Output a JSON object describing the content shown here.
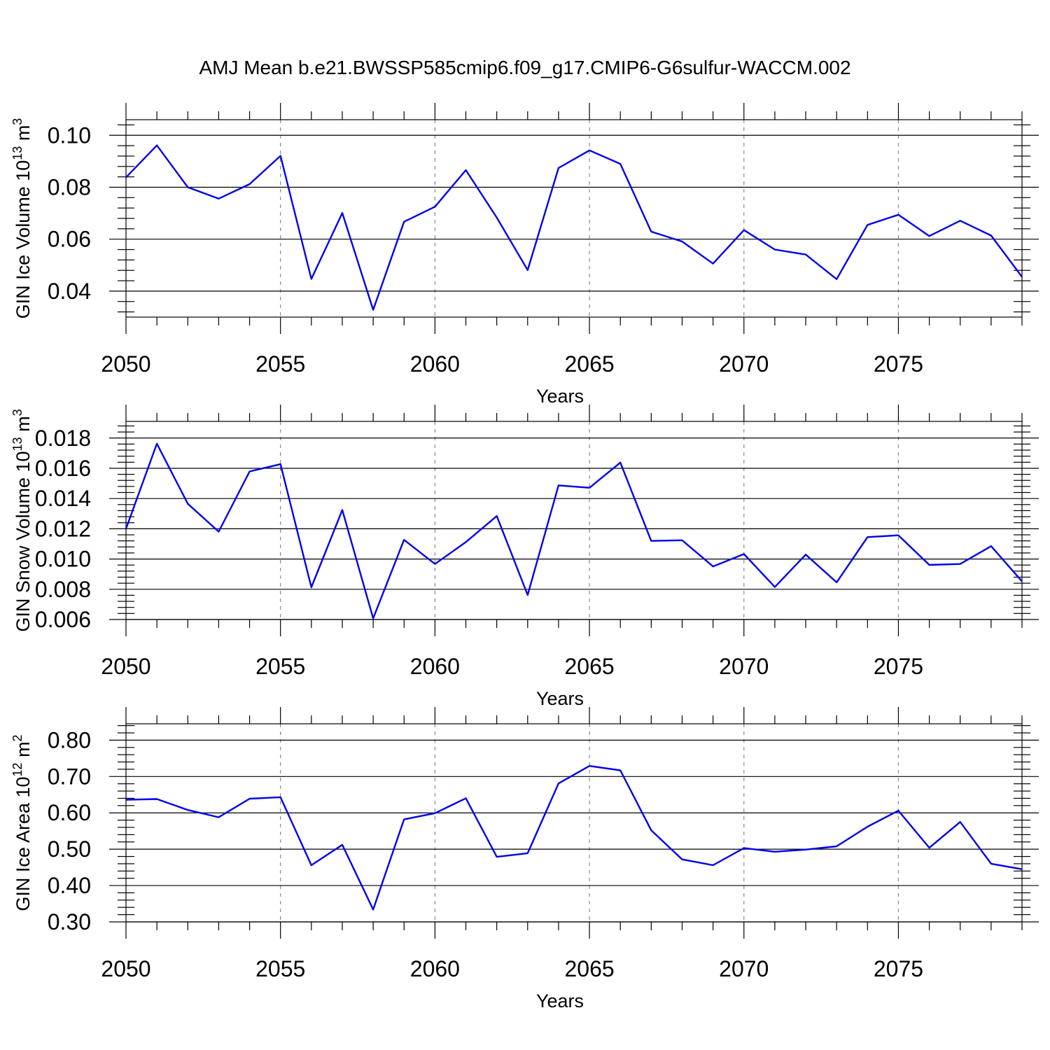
{
  "colors": {
    "series": "#0000ee",
    "grid": "#888888",
    "axis": "#000000"
  },
  "chart_data": {
    "title": "AMJ Mean b.e21.BWSSP585cmip6.f09_g17.CMIP6-G6sulfur-WACCM.002",
    "panels": [
      {
        "type": "line",
        "name": "ice-volume",
        "ylabel": {
          "text": "GIN Ice Volume 10",
          "exp": "13",
          "unit": " m",
          "unit_exp": "3"
        },
        "xlabel": "Years",
        "xlim": [
          2050,
          2079
        ],
        "ylim": [
          0.03,
          0.106
        ],
        "xticks": [
          2050,
          2055,
          2060,
          2065,
          2070,
          2075
        ],
        "xtick_labels": [
          "2050",
          "2055",
          "2060",
          "2065",
          "2070",
          "2075"
        ],
        "yticks": [
          0.04,
          0.06,
          0.08,
          0.1
        ],
        "ytick_labels": [
          "0.04",
          "0.06",
          "0.08",
          "0.10"
        ],
        "yminor_step": 0.004,
        "x": [
          2050,
          2051,
          2052,
          2053,
          2054,
          2055,
          2056,
          2057,
          2058,
          2059,
          2060,
          2061,
          2062,
          2063,
          2064,
          2065,
          2066,
          2067,
          2068,
          2069,
          2070,
          2071,
          2072,
          2073,
          2074,
          2075,
          2076,
          2077,
          2078,
          2079
        ],
        "values": [
          0.0838,
          0.0961,
          0.08,
          0.0756,
          0.0812,
          0.0921,
          0.0447,
          0.0701,
          0.0328,
          0.0667,
          0.0725,
          0.0866,
          0.0683,
          0.0481,
          0.0874,
          0.0942,
          0.089,
          0.0629,
          0.0591,
          0.0506,
          0.0635,
          0.056,
          0.0541,
          0.0446,
          0.0655,
          0.0694,
          0.0612,
          0.0671,
          0.0614,
          0.0455
        ]
      },
      {
        "type": "line",
        "name": "snow-volume",
        "ylabel": {
          "text": "GIN Snow Volume 10",
          "exp": "13",
          "unit": " m",
          "unit_exp": "3"
        },
        "xlabel": "Years",
        "xlim": [
          2050,
          2079
        ],
        "ylim": [
          0.006,
          0.0191
        ],
        "xticks": [
          2050,
          2055,
          2060,
          2065,
          2070,
          2075
        ],
        "xtick_labels": [
          "2050",
          "2055",
          "2060",
          "2065",
          "2070",
          "2075"
        ],
        "yticks": [
          0.006,
          0.008,
          0.01,
          0.012,
          0.014,
          0.016,
          0.018
        ],
        "ytick_labels": [
          "0.006",
          "0.008",
          "0.010",
          "0.012",
          "0.014",
          "0.016",
          "0.018"
        ],
        "yminor_step": 0.0004,
        "x": [
          2050,
          2051,
          2052,
          2053,
          2054,
          2055,
          2056,
          2057,
          2058,
          2059,
          2060,
          2061,
          2062,
          2063,
          2064,
          2065,
          2066,
          2067,
          2068,
          2069,
          2070,
          2071,
          2072,
          2073,
          2074,
          2075,
          2076,
          2077,
          2078,
          2079
        ],
        "values": [
          0.012,
          0.01763,
          0.01365,
          0.01181,
          0.01579,
          0.01627,
          0.00813,
          0.01324,
          0.00608,
          0.01127,
          0.00967,
          0.01112,
          0.01284,
          0.00762,
          0.01487,
          0.01471,
          0.01638,
          0.0112,
          0.01124,
          0.00951,
          0.01033,
          0.00815,
          0.01029,
          0.00846,
          0.01145,
          0.01157,
          0.00961,
          0.00967,
          0.01085,
          0.00852
        ]
      },
      {
        "type": "line",
        "name": "ice-area",
        "ylabel": {
          "text": "GIN Ice Area 10",
          "exp": "12",
          "unit": " m",
          "unit_exp": "2"
        },
        "xlabel": "Years",
        "xlim": [
          2050,
          2079
        ],
        "ylim": [
          0.3,
          0.845
        ],
        "xticks": [
          2050,
          2055,
          2060,
          2065,
          2070,
          2075
        ],
        "xtick_labels": [
          "2050",
          "2055",
          "2060",
          "2065",
          "2070",
          "2075"
        ],
        "yticks": [
          0.3,
          0.4,
          0.5,
          0.6,
          0.7,
          0.8
        ],
        "ytick_labels": [
          "0.30",
          "0.40",
          "0.50",
          "0.60",
          "0.70",
          "0.80"
        ],
        "yminor_step": 0.02,
        "x": [
          2050,
          2051,
          2052,
          2053,
          2054,
          2055,
          2056,
          2057,
          2058,
          2059,
          2060,
          2061,
          2062,
          2063,
          2064,
          2065,
          2066,
          2067,
          2068,
          2069,
          2070,
          2071,
          2072,
          2073,
          2074,
          2075,
          2076,
          2077,
          2078,
          2079
        ],
        "values": [
          0.636,
          0.638,
          0.608,
          0.588,
          0.639,
          0.643,
          0.456,
          0.512,
          0.334,
          0.582,
          0.599,
          0.64,
          0.479,
          0.489,
          0.681,
          0.729,
          0.717,
          0.552,
          0.472,
          0.456,
          0.503,
          0.493,
          0.499,
          0.508,
          0.562,
          0.606,
          0.504,
          0.575,
          0.46,
          0.445
        ]
      }
    ]
  }
}
